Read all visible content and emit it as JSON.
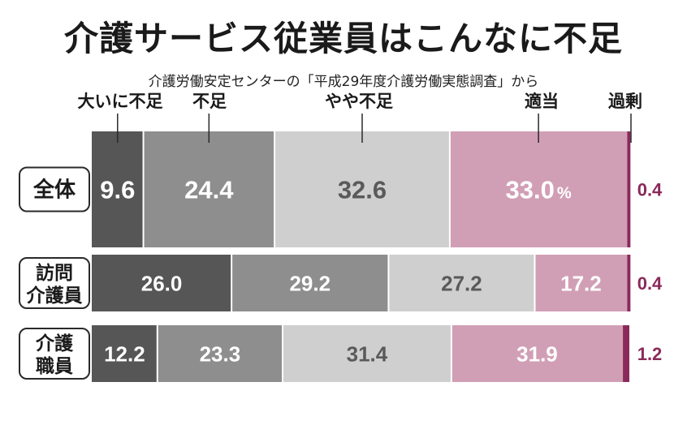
{
  "title": "介護サービス従業員はこんなに不足",
  "subtitle": "介護労働安定センターの「平成29年度介護労働実態調査」から",
  "chart_data": {
    "type": "bar",
    "orientation": "horizontal",
    "stacked": true,
    "unit": "%",
    "categories": [
      "全体",
      "訪問介護員",
      "介護職員"
    ],
    "category_lines": [
      [
        "全体"
      ],
      [
        "訪問",
        "介護員"
      ],
      [
        "介護",
        "職員"
      ]
    ],
    "series": [
      {
        "name": "大いに不足",
        "values": [
          9.6,
          26.0,
          12.2
        ],
        "labels": [
          "9.6",
          "26.0",
          "12.2"
        ],
        "color": "#565656",
        "text_color": "#ffffff"
      },
      {
        "name": "不足",
        "values": [
          24.4,
          29.2,
          23.3
        ],
        "labels": [
          "24.4",
          "29.2",
          "23.3"
        ],
        "color": "#8e8e8e",
        "text_color": "#ffffff"
      },
      {
        "name": "やや不足",
        "values": [
          32.6,
          27.2,
          31.4
        ],
        "labels": [
          "32.6",
          "27.2",
          "31.4"
        ],
        "color": "#cfcfcf",
        "text_color": "#5a5a5a"
      },
      {
        "name": "適当",
        "values": [
          33.0,
          17.2,
          31.9
        ],
        "labels": [
          "33.0",
          "17.2",
          "31.9"
        ],
        "color": "#d19fb5",
        "text_color": "#ffffff"
      },
      {
        "name": "過剰",
        "values": [
          0.4,
          0.4,
          1.2
        ],
        "labels": [
          "0.4",
          "0.4",
          "1.2"
        ],
        "color": "#8a2a5a",
        "text_color": "#8a2a5a"
      }
    ],
    "percent_mark": "%",
    "legend_placement": "top"
  }
}
